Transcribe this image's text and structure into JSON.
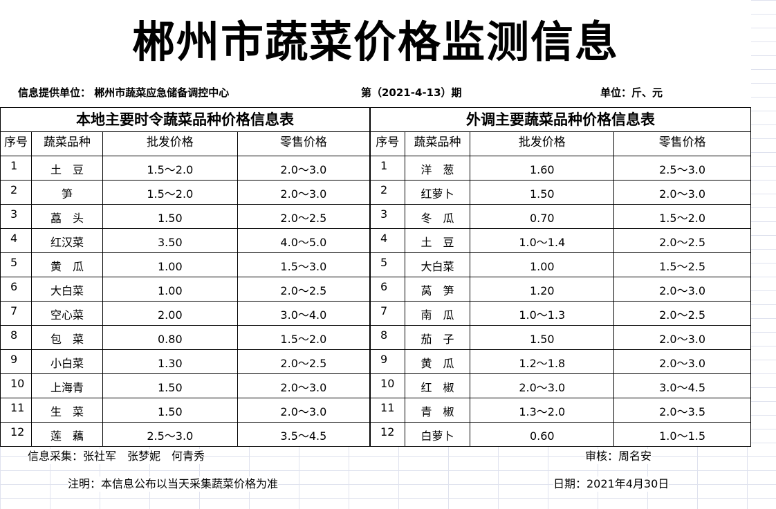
{
  "title": "郴州市蔬菜价格监测信息",
  "info": {
    "provider": "信息提供单位：  郴州市蔬菜应急储备调控中心",
    "issue": "第（2021-4-13）期",
    "unit": "单位：斤、元"
  },
  "local": {
    "section_title": "本地主要时令蔬菜品种价格信息表",
    "headers": [
      "序号",
      "蔬菜品种",
      "批发价格",
      "零售价格"
    ],
    "rows": [
      [
        "1",
        "土　豆",
        "1.5～2.0",
        "2.0～3.0"
      ],
      [
        "2",
        "笋",
        "1.5～2.0",
        "2.0～3.0"
      ],
      [
        "3",
        "藠　头",
        "1.50",
        "2.0～2.5"
      ],
      [
        "4",
        "红汉菜",
        "3.50",
        "4.0～5.0"
      ],
      [
        "5",
        "黄　瓜",
        "1.00",
        "1.5～3.0"
      ],
      [
        "6",
        "大白菜",
        "1.00",
        "2.0～2.5"
      ],
      [
        "7",
        "空心菜",
        "2.00",
        "3.0～4.0"
      ],
      [
        "8",
        "包　菜",
        "0.80",
        "1.5～2.0"
      ],
      [
        "9",
        "小白菜",
        "1.30",
        "2.0～2.5"
      ],
      [
        "10",
        "上海青",
        "1.50",
        "2.0～3.0"
      ],
      [
        "11",
        "生　菜",
        "1.50",
        "2.0～3.0"
      ],
      [
        "12",
        "莲　藕",
        "2.5～3.0",
        "3.5～4.5"
      ]
    ]
  },
  "external": {
    "section_title": "外调主要蔬菜品种价格信息表",
    "headers": [
      "序号",
      "蔬菜品种",
      "批发价格",
      "零售价格"
    ],
    "rows": [
      [
        "1",
        "洋　葱",
        "1.60",
        "2.5～3.0"
      ],
      [
        "2",
        "红萝卜",
        "1.50",
        "2.0～3.0"
      ],
      [
        "3",
        "冬　瓜",
        "0.70",
        "1.5～2.0"
      ],
      [
        "4",
        "土　豆",
        "1.0～1.4",
        "2.0～2.5"
      ],
      [
        "5",
        "大白菜",
        "1.00",
        "1.5～2.5"
      ],
      [
        "6",
        "莴　笋",
        "1.20",
        "2.0～3.0"
      ],
      [
        "7",
        "南　瓜",
        "1.0～1.3",
        "2.0～2.5"
      ],
      [
        "8",
        "茄　子",
        "1.50",
        "2.0～3.0"
      ],
      [
        "9",
        "黄　瓜",
        "1.2～1.8",
        "2.0～3.0"
      ],
      [
        "10",
        "红　椒",
        "2.0～3.0",
        "3.0～4.5"
      ],
      [
        "11",
        "青　椒",
        "1.3～2.0",
        "2.0～3.5"
      ],
      [
        "12",
        "白萝卜",
        "0.60",
        "1.0～1.5"
      ]
    ]
  },
  "footer": {
    "collectors": "信息采集：张社军　张梦妮　何青秀",
    "reviewer": "审核：周名安",
    "note": "注明：本信息公布以当天采集蔬菜价格为准",
    "date": "日期：2021年4月30日"
  }
}
